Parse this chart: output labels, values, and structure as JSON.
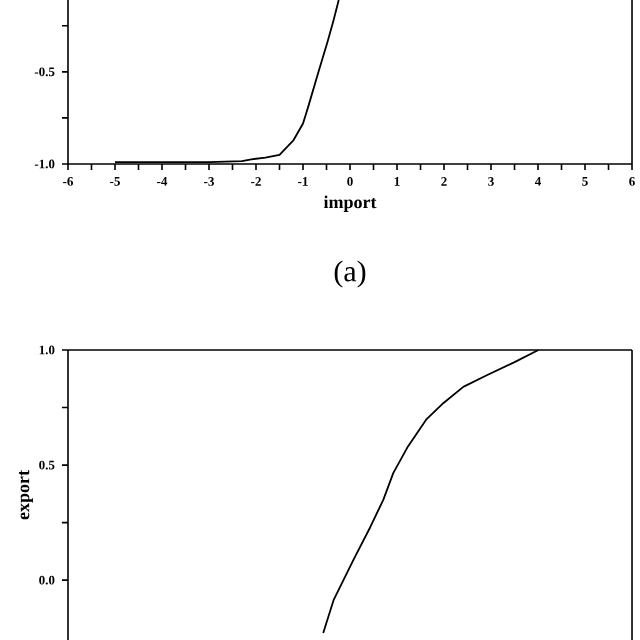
{
  "chart_data": [
    {
      "type": "line",
      "xlabel": "import",
      "annotations": [
        "(a)"
      ],
      "xlim": [
        -6,
        6
      ],
      "ylim": [
        -1.0,
        -0.11
      ],
      "xticks": [
        -6,
        {
          "value": -5.5,
          "label": null
        },
        -5,
        {
          "value": -4.5,
          "label": null
        },
        -4,
        {
          "value": -3.5,
          "label": null
        },
        -3,
        {
          "value": -2.5,
          "label": null
        },
        -2,
        {
          "value": -1.5,
          "label": null
        },
        -1,
        {
          "value": -0.5,
          "label": null
        },
        0,
        {
          "value": 0.5,
          "label": null
        },
        1,
        {
          "value": 1.5,
          "label": null
        },
        2,
        {
          "value": 2.5,
          "label": null
        },
        3,
        {
          "value": 3.5,
          "label": null
        },
        4,
        {
          "value": 4.5,
          "label": null
        },
        5,
        {
          "value": 5.5,
          "label": null
        },
        6
      ],
      "yticks": [
        {
          "value": -1.0,
          "label": "-1.0"
        },
        {
          "value": -0.75,
          "label": null
        },
        -0.5,
        {
          "value": -0.25,
          "label": null
        }
      ],
      "marker": "none",
      "line_style": "solid",
      "series": [
        {
          "color": "#000000",
          "x": [
            -5,
            -3,
            -2.3,
            -2.1,
            -1.8,
            -1.5,
            -1.2,
            -1.0,
            -0.89,
            -0.67,
            -0.47,
            -0.35,
            -0.24
          ],
          "values": [
            -0.99,
            -0.99,
            -0.985,
            -0.975,
            -0.965,
            -0.95,
            -0.87,
            -0.78,
            -0.69,
            -0.5,
            -0.33,
            -0.22,
            -0.11
          ]
        }
      ]
    },
    {
      "type": "line",
      "ylabel": "export",
      "xlim": [
        -6,
        6
      ],
      "ylim": [
        -0.26,
        1.0
      ],
      "tick_labels": "y",
      "yticks": [
        {
          "value": 0.0,
          "label": "0.0"
        },
        {
          "value": 0.25,
          "label": null
        },
        0.5,
        {
          "value": 0.75,
          "label": null
        },
        {
          "value": 1.0,
          "label": "1.0"
        }
      ],
      "marker": "none",
      "line_style": "solid",
      "series": [
        {
          "color": "#000000",
          "x": [
            -0.57,
            -0.35,
            0.07,
            0.43,
            0.71,
            0.92,
            1.23,
            1.63,
            1.99,
            2.41,
            2.91,
            3.48,
            4.01
          ],
          "values": [
            -0.23,
            -0.087,
            0.087,
            0.23,
            0.35,
            0.465,
            0.58,
            0.7,
            0.77,
            0.84,
            0.89,
            0.945,
            1.0
          ]
        }
      ]
    }
  ]
}
